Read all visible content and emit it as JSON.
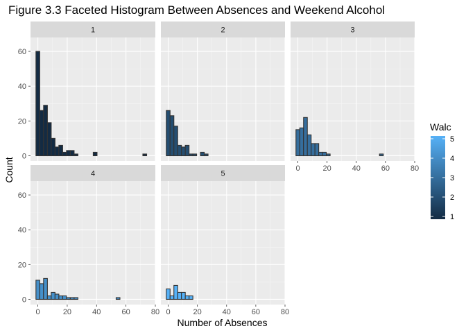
{
  "chart_data": {
    "type": "histogram",
    "title": "Figure 3.3 Faceted Histogram Between Absences and Weekend Alcohol",
    "xlabel": "Number of Absences",
    "ylabel": "Count",
    "xlim": [
      -5,
      80
    ],
    "ylim": [
      -3,
      68
    ],
    "x_ticks": [
      0,
      20,
      40,
      60,
      80
    ],
    "y_ticks": [
      0,
      20,
      40,
      60
    ],
    "bin_width": 2.6,
    "bin_start": -1.3,
    "grid": true,
    "legend": {
      "title": "Walc",
      "position": "right",
      "labels": [
        "1",
        "2",
        "3",
        "4",
        "5"
      ],
      "low_color": "#132b43",
      "high_color": "#56b1f7"
    },
    "panel_background": "#ebebeb",
    "strip_background": "#d9d9d9",
    "facets": [
      {
        "label": "1",
        "walc": 1,
        "counts": [
          60,
          26,
          29,
          19,
          10,
          5,
          6,
          2,
          3,
          3,
          1,
          0,
          0,
          0,
          0,
          2,
          0,
          0,
          0,
          0,
          0,
          0,
          0,
          0,
          0,
          0,
          0,
          0,
          1
        ]
      },
      {
        "label": "2",
        "walc": 2,
        "counts": [
          26,
          23,
          17,
          6,
          5,
          6,
          1,
          1,
          0,
          2,
          1,
          0,
          0,
          0,
          0,
          0,
          0,
          0,
          0,
          0,
          0,
          0,
          0,
          0,
          0,
          0,
          0,
          0,
          0
        ]
      },
      {
        "label": "3",
        "walc": 3,
        "counts": [
          15,
          16,
          22,
          12,
          7,
          7,
          2,
          2,
          1,
          0,
          0,
          0,
          0,
          0,
          0,
          0,
          0,
          0,
          0,
          0,
          0,
          0,
          1,
          0,
          0,
          0,
          0,
          0,
          0
        ]
      },
      {
        "label": "4",
        "walc": 4,
        "counts": [
          11,
          9,
          12,
          2,
          4,
          3,
          2,
          2,
          1,
          1,
          1,
          0,
          0,
          0,
          0,
          0,
          0,
          0,
          0,
          0,
          0,
          1,
          0,
          0,
          0,
          0,
          0,
          0,
          0
        ]
      },
      {
        "label": "5",
        "walc": 5,
        "counts": [
          6,
          2,
          8,
          4,
          4,
          2,
          2,
          0,
          0,
          0,
          0,
          0,
          0,
          0,
          0,
          0,
          0,
          0,
          0,
          0,
          0,
          0,
          0,
          0,
          0,
          0,
          0,
          0,
          0
        ]
      }
    ]
  }
}
